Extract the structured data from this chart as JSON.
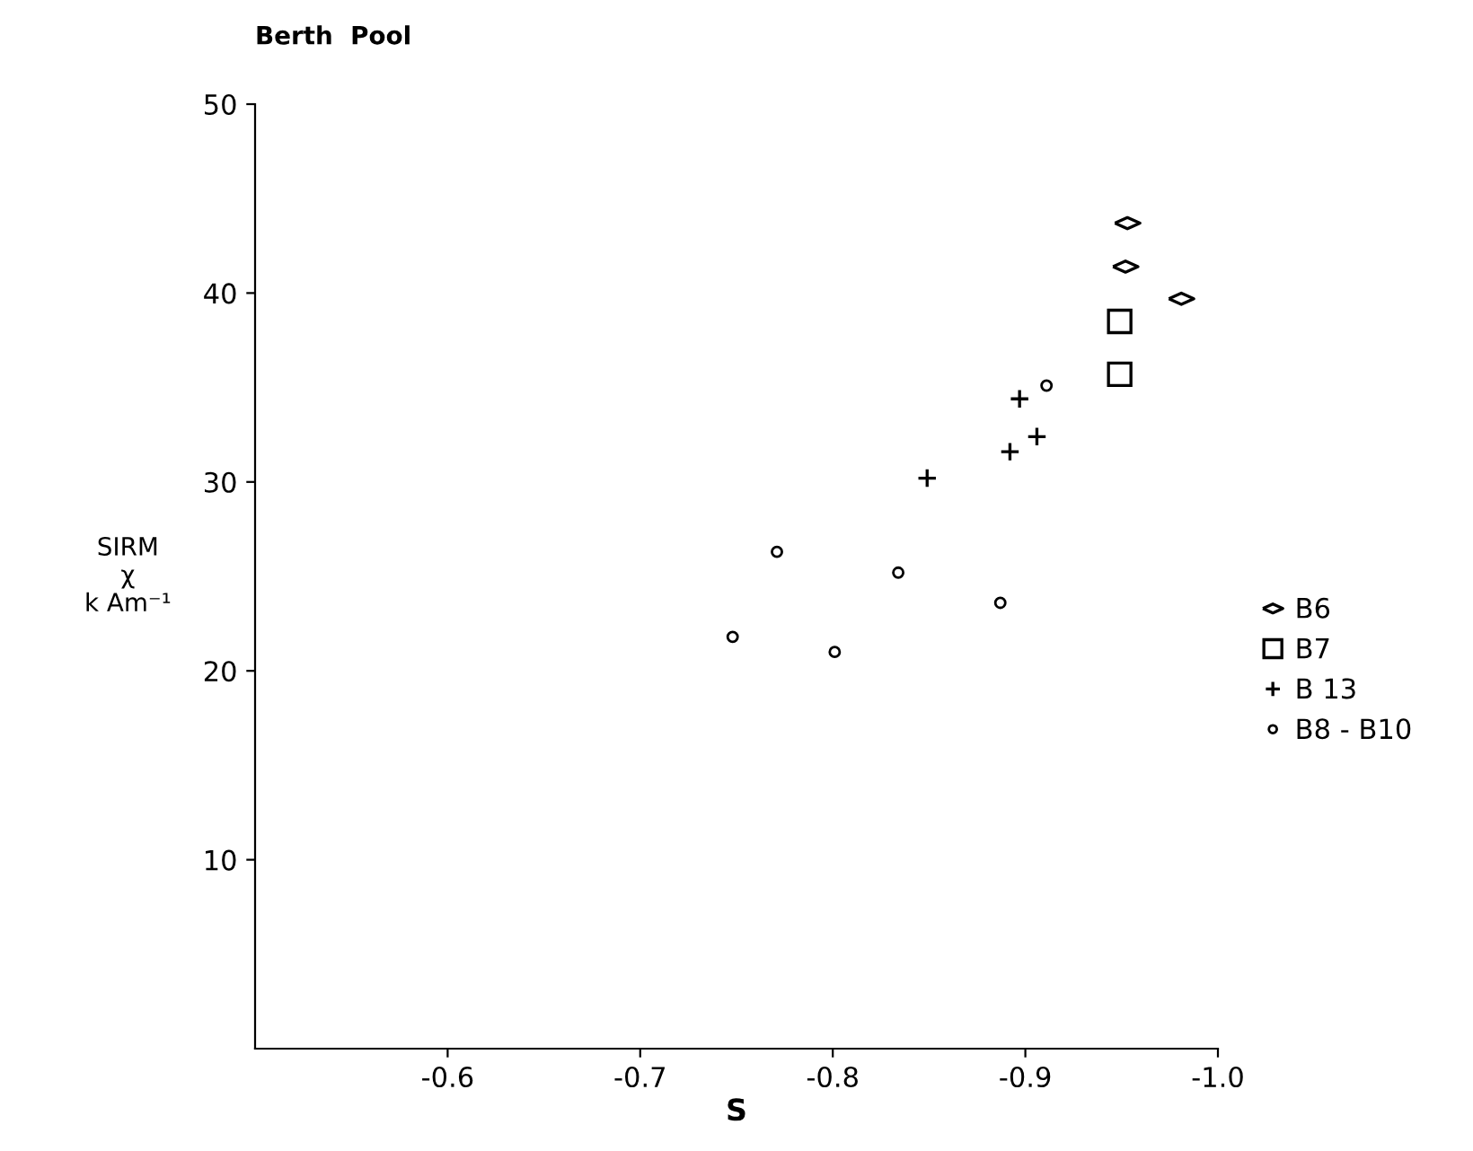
{
  "chart_data": {
    "type": "scatter",
    "title": "Berth  Pool",
    "xlabel": "S",
    "ylabel": "SIRM\nχ\nk Am⁻¹",
    "xlim": [
      -0.5,
      -1.0
    ],
    "ylim": [
      0,
      50
    ],
    "xticks": [
      -0.6,
      -0.7,
      -0.8,
      -0.9,
      {
        "value": -1.0,
        "label": "-1.0"
      }
    ],
    "yticks": [
      10,
      20,
      30,
      40,
      50
    ],
    "grid": false,
    "legend": "right",
    "series": [
      {
        "name": "B6",
        "color": "#000000",
        "marker": "diamond",
        "x": [
          -0.953,
          -0.952,
          -0.981
        ],
        "values": [
          43.7,
          41.4,
          39.7
        ]
      },
      {
        "name": "B7",
        "color": "#000000",
        "marker": "square",
        "x": [
          -0.949,
          -0.949
        ],
        "values": [
          38.5,
          35.7
        ]
      },
      {
        "name": "B 13",
        "color": "#000000",
        "marker": "cross",
        "x": [
          -0.897,
          -0.906,
          -0.892,
          -0.849
        ],
        "values": [
          34.4,
          32.4,
          31.6,
          30.2
        ]
      },
      {
        "name": "B8 - B10",
        "color": "#000000",
        "marker": "circle",
        "x": [
          -0.911,
          -0.834,
          -0.887,
          -0.748,
          -0.771,
          -0.801
        ],
        "values": [
          35.1,
          25.2,
          23.6,
          21.8,
          26.3,
          21.0
        ]
      }
    ]
  }
}
